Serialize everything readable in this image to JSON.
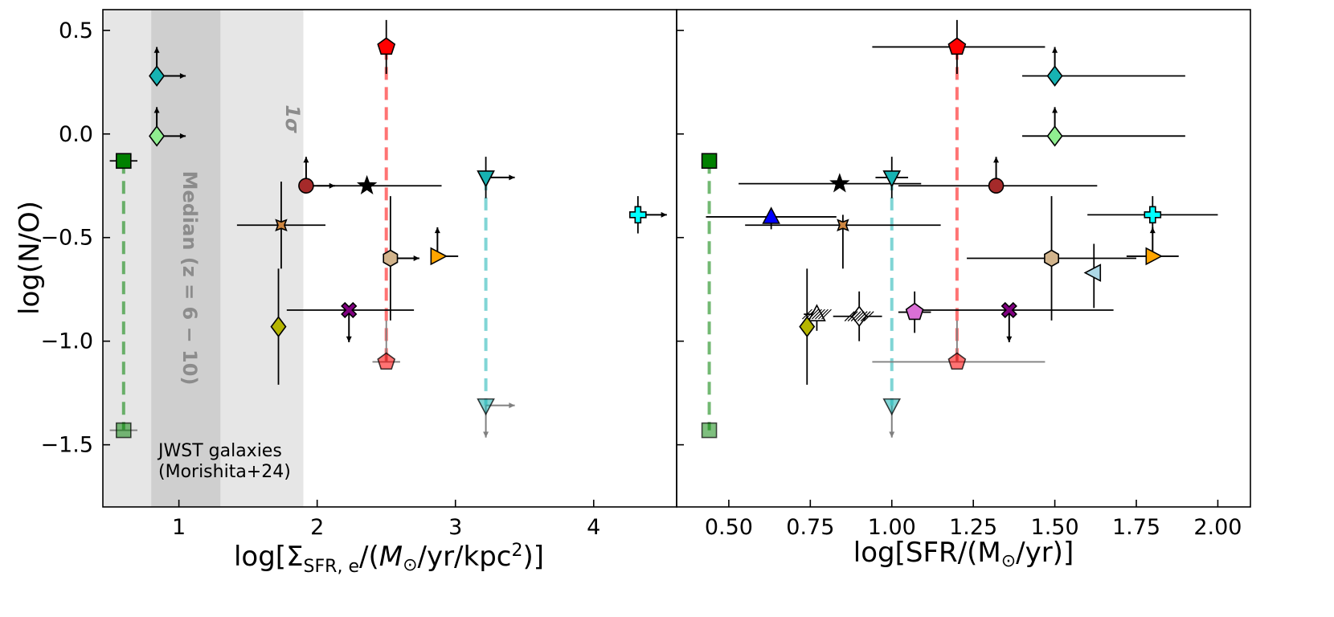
{
  "chart_data": [
    {
      "type": "scatter",
      "title": "",
      "xlabel": "log[Σ_SFR,e/(M⊙/yr/kpc²)]",
      "ylabel": "log(N/O)",
      "xlim": [
        0.45,
        4.6
      ],
      "ylim": [
        -1.8,
        0.6
      ],
      "xticks": [
        "1",
        "2",
        "3",
        "4"
      ],
      "yticks": [
        "0.5",
        "0.0",
        "−0.5",
        "−1.0",
        "−1.5"
      ],
      "bands": [
        {
          "name": "1σ",
          "x0": 0.45,
          "x1": 1.9,
          "color": "#e6e6e6"
        },
        {
          "name": "Median (z = 6 − 10)",
          "x0": 0.8,
          "x1": 1.3,
          "color": "#cfcfcf"
        }
      ],
      "annotation": "JWST galaxies\n(Morishita+24)",
      "points": [
        {
          "x": 0.6,
          "y": -0.13,
          "marker": "square",
          "color": "#008000",
          "xerr": 0.1
        },
        {
          "x": 0.6,
          "y": -1.43,
          "marker": "square",
          "color": "#008000",
          "alpha": 0.5,
          "xerr": 0.1
        },
        {
          "x": 0.84,
          "y": 0.28,
          "marker": "diamond",
          "color": "#17b3b3",
          "uplim": true,
          "xlow": true
        },
        {
          "x": 0.84,
          "y": -0.01,
          "marker": "diamond",
          "color": "#90ee90",
          "uplim": true,
          "xlow": true
        },
        {
          "x": 2.5,
          "y": 0.42,
          "marker": "pentagon",
          "color": "#ff0000",
          "yerr": 0.13,
          "xerr": 0.05
        },
        {
          "x": 2.5,
          "y": -1.1,
          "marker": "pentagon",
          "color": "#ff0000",
          "alpha": 0.55,
          "yerr": [
            0,
            0.2
          ],
          "xerr": 0.1
        },
        {
          "x": 1.92,
          "y": -0.25,
          "marker": "circle",
          "color": "#a52a2a",
          "uplim": true,
          "xlow": true
        },
        {
          "x": 2.36,
          "y": -0.25,
          "marker": "star",
          "color": "#000000",
          "xerr": [
            0.36,
            0.54
          ]
        },
        {
          "x": 3.22,
          "y": -0.21,
          "marker": "tri_down",
          "color": "#17b3b3",
          "yerr": 0.1,
          "xlow": true
        },
        {
          "x": 3.22,
          "y": -1.31,
          "marker": "tri_down",
          "color": "#17b3b3",
          "alpha": 0.55,
          "lolim": true,
          "xlow": true
        },
        {
          "x": 4.32,
          "y": -0.39,
          "marker": "plus",
          "color": "#00ffff",
          "yerr": 0.09,
          "xlow": true
        },
        {
          "x": 1.74,
          "y": -0.44,
          "marker": "star4",
          "color": "#cd853f",
          "xerr": 0.32,
          "yerr": 0.21
        },
        {
          "x": 2.53,
          "y": -0.6,
          "marker": "hexagon",
          "color": "#d2b48c",
          "yerr": [
            0.3,
            0.3
          ],
          "xlow": true
        },
        {
          "x": 2.87,
          "y": -0.59,
          "marker": "tri_right",
          "color": "#ffa500",
          "uplim": true,
          "xerr": [
            0,
            0.15
          ]
        },
        {
          "x": 2.23,
          "y": -0.85,
          "marker": "x",
          "color": "#800080",
          "xerr": [
            0.45,
            0.47
          ],
          "lolim": true
        },
        {
          "x": 1.72,
          "y": -0.93,
          "marker": "diamond",
          "color": "#b5b500",
          "yerr": [
            0.28,
            0.28
          ]
        }
      ]
    },
    {
      "type": "scatter",
      "title": "",
      "xlabel": "log[SFR/(M⊙/yr)]",
      "ylabel": "",
      "xlim": [
        0.34,
        2.1
      ],
      "ylim": [
        -1.8,
        0.6
      ],
      "xticks": [
        "0.50",
        "0.75",
        "1.00",
        "1.25",
        "1.50",
        "1.75",
        "2.00"
      ],
      "points": [
        {
          "x": 0.44,
          "y": -0.13,
          "marker": "square",
          "color": "#008000"
        },
        {
          "x": 0.44,
          "y": -1.43,
          "marker": "square",
          "color": "#008000",
          "alpha": 0.5
        },
        {
          "x": 1.2,
          "y": 0.42,
          "marker": "pentagon",
          "color": "#ff0000",
          "xerr": [
            0.26,
            0.27
          ],
          "yerr": 0.13
        },
        {
          "x": 1.2,
          "y": -1.1,
          "marker": "pentagon",
          "color": "#ff0000",
          "alpha": 0.55,
          "xerr": [
            0.26,
            0.27
          ],
          "yerr": [
            0,
            0.2
          ]
        },
        {
          "x": 1.5,
          "y": 0.28,
          "marker": "diamond",
          "color": "#17b3b3",
          "uplim": true,
          "xerr": [
            0.1,
            0.4
          ]
        },
        {
          "x": 1.5,
          "y": -0.01,
          "marker": "diamond",
          "color": "#90ee90",
          "uplim": true,
          "xerr": [
            0.1,
            0.4
          ]
        },
        {
          "x": 1.32,
          "y": -0.25,
          "marker": "circle",
          "color": "#a52a2a",
          "uplim": true,
          "xerr": [
            0.3,
            0.31
          ]
        },
        {
          "x": 0.84,
          "y": -0.24,
          "marker": "star",
          "color": "#000000",
          "xerr": [
            0.31,
            0.25
          ],
          "yerr": [
            0.0,
            0.0
          ]
        },
        {
          "x": 1.0,
          "y": -0.21,
          "marker": "tri_down",
          "color": "#17b3b3",
          "yerr": 0.1,
          "xerr": [
            0.05,
            0.05
          ]
        },
        {
          "x": 1.0,
          "y": -1.31,
          "marker": "tri_down",
          "color": "#17b3b3",
          "alpha": 0.55,
          "lolim": true
        },
        {
          "x": 1.8,
          "y": -0.39,
          "marker": "plus",
          "color": "#00ffff",
          "xerr": [
            0.2,
            0.2
          ],
          "yerr": 0.09
        },
        {
          "x": 0.63,
          "y": -0.4,
          "marker": "tri_up",
          "color": "#0000ff",
          "xerr": [
            0.2,
            0.2
          ],
          "yerr": [
            0.06,
            0.0
          ]
        },
        {
          "x": 0.85,
          "y": -0.44,
          "marker": "star4",
          "color": "#cd853f",
          "xerr": [
            0.3,
            0.3
          ],
          "yerr": [
            0.21,
            0.05
          ]
        },
        {
          "x": 1.49,
          "y": -0.6,
          "marker": "hexagon",
          "color": "#d2b48c",
          "xerr": [
            0.26,
            0.26
          ],
          "yerr": [
            0.3,
            0.3
          ]
        },
        {
          "x": 1.8,
          "y": -0.59,
          "marker": "tri_right",
          "color": "#ffa500",
          "uplim": true,
          "xerr": [
            0.08,
            0.08
          ]
        },
        {
          "x": 1.62,
          "y": -0.67,
          "marker": "tri_left",
          "color": "#add8e6",
          "yerr": [
            0.17,
            0.14
          ]
        },
        {
          "x": 1.36,
          "y": -0.85,
          "marker": "x",
          "color": "#800080",
          "xerr": [
            0.3,
            0.32
          ],
          "lolim": true
        },
        {
          "x": 1.07,
          "y": -0.86,
          "marker": "pentagon",
          "color": "#da70d6",
          "xerr": [
            0.05,
            0.05
          ],
          "yerr": [
            0.1,
            0.1
          ]
        },
        {
          "x": 0.9,
          "y": -0.88,
          "marker": "diamond",
          "color": "#ffffff",
          "hatch": true,
          "xerr": [
            0.08,
            0.07
          ],
          "yerr": [
            0.12,
            0.12
          ]
        },
        {
          "x": 0.77,
          "y": -0.87,
          "marker": "tri_up",
          "color": "#ffffff",
          "hatch": true,
          "xerr": [
            0.04,
            0.0
          ],
          "yerr": [
            0.08,
            0.0
          ]
        },
        {
          "x": 0.74,
          "y": -0.93,
          "marker": "diamond",
          "color": "#b5b500",
          "yerr": [
            0.28,
            0.28
          ]
        }
      ],
      "connectors": [
        {
          "x": 0.44,
          "y0": -0.13,
          "y1": -1.43,
          "color": "#008000"
        },
        {
          "x": 1.2,
          "y0": 0.42,
          "y1": -1.1,
          "color": "#ff0000"
        },
        {
          "x": 1.0,
          "y0": -0.21,
          "y1": -1.31,
          "color": "#17b3b3"
        }
      ]
    }
  ],
  "connectors_left": [
    {
      "x": 0.6,
      "y0": -0.13,
      "y1": -1.43,
      "color": "#008000"
    },
    {
      "x": 2.5,
      "y0": 0.42,
      "y1": -1.1,
      "color": "#ff0000"
    },
    {
      "x": 3.22,
      "y0": -0.21,
      "y1": -1.31,
      "color": "#17b3b3"
    }
  ]
}
